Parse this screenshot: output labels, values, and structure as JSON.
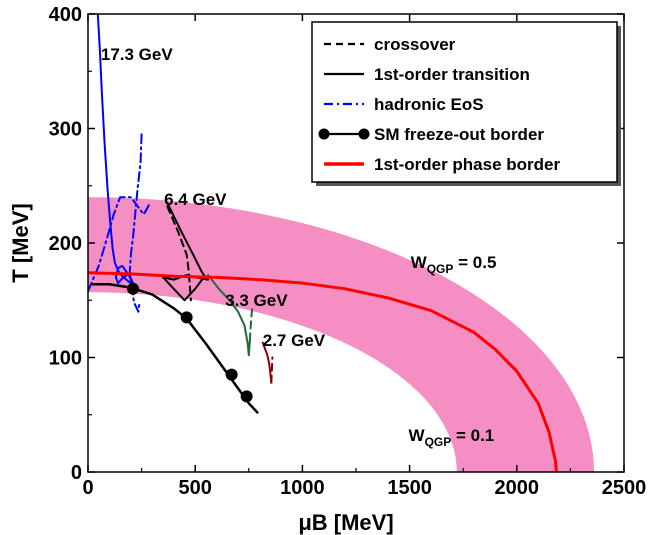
{
  "chart_data": {
    "type": "line",
    "xlabel": "μB [MeV]",
    "ylabel": "T [MeV]",
    "xlim": [
      0,
      2500
    ],
    "ylim": [
      0,
      400
    ],
    "x_ticks": [
      "0",
      "500",
      "1000",
      "1500",
      "2000",
      "2500"
    ],
    "y_ticks": [
      "0",
      "100",
      "200",
      "300",
      "400"
    ],
    "legend": {
      "position": "top-right",
      "entries": [
        {
          "label": "crossover",
          "style": "dashed",
          "color": "#000000"
        },
        {
          "label": "1st-order transition",
          "style": "solid",
          "color": "#000000"
        },
        {
          "label": "hadronic EoS",
          "style": "dashdot",
          "color": "#0000ff"
        },
        {
          "label": "SM freeze-out border",
          "style": "solid-markers",
          "color": "#000000"
        },
        {
          "label": "1st-order phase border",
          "style": "solid-thick",
          "color": "#ff0000"
        }
      ]
    },
    "annotations": [
      {
        "text": "17.3 GeV",
        "x": 60,
        "y": 360
      },
      {
        "text": "6.4 GeV",
        "x": 355,
        "y": 233
      },
      {
        "text": "3.3 GeV",
        "x": 640,
        "y": 145
      },
      {
        "text": "2.7 GeV",
        "x": 815,
        "y": 110
      },
      {
        "text": "W",
        "sub": "QGP",
        "rest": " = 0.5",
        "x": 1505,
        "y": 178
      },
      {
        "text": "W",
        "sub": "QGP",
        "rest": " = 0.1",
        "x": 1495,
        "y": 27
      }
    ],
    "band": {
      "name": "W_QGP band",
      "color": "#f58ec2",
      "outer": {
        "T0": 240,
        "muB_end": 2360
      },
      "inner": {
        "T0": 157,
        "muB_end": 1720
      }
    },
    "phase_border": {
      "color": "#ff0000",
      "x": [
        0,
        200,
        400,
        600,
        800,
        1000,
        1200,
        1400,
        1600,
        1800,
        1900,
        2000,
        2100,
        2150,
        2180,
        2185
      ],
      "y": [
        174,
        173,
        171,
        170,
        168,
        165,
        160,
        152,
        141,
        122,
        107,
        88,
        60,
        35,
        10,
        0
      ]
    },
    "freeze_out": {
      "color": "#000000",
      "x": [
        20,
        100,
        200,
        300,
        400,
        460,
        550,
        650,
        750,
        790
      ],
      "y": [
        164,
        164,
        161,
        155,
        143,
        134,
        112,
        86,
        60,
        52
      ],
      "markers_x": [
        210,
        460,
        670,
        740
      ],
      "markers_y": [
        160,
        135,
        85,
        66
      ]
    },
    "series": [
      {
        "name": "17.3 GeV",
        "color": "#0000ff",
        "style": "solid",
        "x": [
          45,
          55,
          65,
          78,
          92,
          105,
          115,
          125,
          140,
          160,
          185,
          215
        ],
        "y": [
          402,
          370,
          330,
          285,
          245,
          215,
          195,
          183,
          176,
          171,
          167,
          163
        ]
      },
      {
        "name": "17.3 GeV loop",
        "color": "#0000ff",
        "style": "solid",
        "x": [
          215,
          190,
          160,
          140,
          130,
          140,
          165,
          190,
          215
        ],
        "y": [
          163,
          172,
          180,
          178,
          170,
          165,
          170,
          173,
          163
        ]
      },
      {
        "name": "17.3 GeV hadronic a",
        "color": "#0000ff",
        "style": "dashdot",
        "x": [
          0,
          50,
          90,
          120,
          150,
          200,
          260,
          290
        ],
        "y": [
          158,
          180,
          205,
          225,
          240,
          240,
          225,
          235
        ]
      },
      {
        "name": "17.3 GeV hadronic b",
        "color": "#0000ff",
        "style": "dashdot",
        "x": [
          250,
          245,
          230,
          220,
          210,
          200,
          195,
          205,
          215,
          235,
          240
        ],
        "y": [
          295,
          270,
          245,
          225,
          205,
          190,
          175,
          160,
          148,
          140,
          148
        ]
      },
      {
        "name": "6.4 GeV",
        "color": "#000000",
        "style": "solid",
        "x": [
          370,
          430,
          490,
          530,
          555,
          560,
          505,
          460,
          400,
          350
        ],
        "y": [
          235,
          212,
          190,
          175,
          168,
          168,
          170,
          172,
          168,
          170
        ]
      },
      {
        "name": "6.4 GeV crossover",
        "color": "#000000",
        "style": "dashed",
        "x": [
          370,
          420,
          460,
          470,
          480
        ],
        "y": [
          232,
          210,
          190,
          175,
          150
        ]
      },
      {
        "name": "6.4 GeV lower",
        "color": "#000000",
        "style": "solid",
        "x": [
          350,
          400,
          450,
          500,
          540
        ],
        "y": [
          170,
          160,
          150,
          160,
          170
        ]
      },
      {
        "name": "3.3 GeV",
        "color": "#1b6b3a",
        "style": "solid",
        "x": [
          560,
          610,
          660,
          700,
          730,
          745,
          750,
          755
        ],
        "y": [
          172,
          160,
          150,
          140,
          128,
          112,
          102,
          115
        ]
      },
      {
        "name": "3.3 GeV dashed",
        "color": "#1b6b3a",
        "style": "dashed",
        "x": [
          755,
          758,
          762,
          765
        ],
        "y": [
          115,
          125,
          135,
          142
        ]
      },
      {
        "name": "2.7 GeV",
        "color": "#8b0000",
        "style": "solid",
        "x": [
          815,
          835,
          845,
          850,
          855
        ],
        "y": [
          113,
          103,
          95,
          87,
          78
        ]
      },
      {
        "name": "2.7 GeV dashed",
        "color": "#8b0000",
        "style": "dashed",
        "x": [
          855,
          858,
          860
        ],
        "y": [
          78,
          90,
          100
        ]
      }
    ]
  }
}
